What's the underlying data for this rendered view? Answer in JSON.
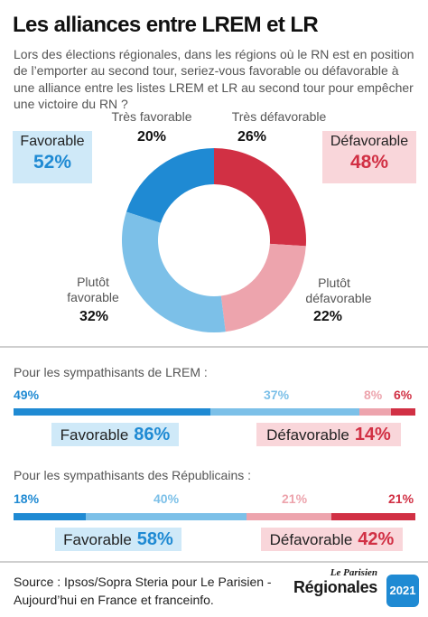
{
  "title": "Les alliances entre LREM et LR",
  "question": "Lors des élections régionales, dans les régions où le RN est en position de l’emporter au second tour, seriez-vous favorable ou défavorable à une alliance entre les listes LREM et LR au second tour pour empêcher une victoire du RN ?",
  "chart_data": [
    {
      "type": "pie",
      "categories": [
        "Très favorable",
        "Très défavorable",
        "Plutôt défavorable",
        "Plutôt favorable"
      ],
      "values": [
        20,
        26,
        22,
        32
      ],
      "value_labels": [
        "20%",
        "26%",
        "22%",
        "32%"
      ],
      "colors": [
        "#1f8ad3",
        "#d13044",
        "#eda4ad",
        "#7cc0e8"
      ],
      "segment_labels": {
        "tres_favorable": "Très favorable",
        "tres_defavorable": "Très défavorable",
        "plutot_defavorable_1": "Plutôt",
        "plutot_defavorable_2": "défavorable",
        "plutot_favorable_1": "Plutôt",
        "plutot_favorable_2": "favorable"
      },
      "summary": {
        "favorable_label": "Favorable",
        "favorable_value": "52%",
        "defavorable_label": "Défavorable",
        "defavorable_value": "48%"
      }
    },
    {
      "type": "bar",
      "stacked": true,
      "title": "Pour les sympathisants de LREM :",
      "categories": [
        "Très favorable",
        "Plutôt favorable",
        "Plutôt défavorable",
        "Très défavorable"
      ],
      "values": [
        49,
        37,
        8,
        6
      ],
      "value_labels": [
        "49%",
        "37%",
        "8%",
        "6%"
      ],
      "colors": [
        "#1f8ad3",
        "#7cc0e8",
        "#eda4ad",
        "#d13044"
      ],
      "favorable_label": "Favorable",
      "favorable_value": "86%",
      "defavorable_label": "Défavorable",
      "defavorable_value": "14%"
    },
    {
      "type": "bar",
      "stacked": true,
      "title": "Pour les sympathisants des Républicains :",
      "categories": [
        "Très favorable",
        "Plutôt favorable",
        "Plutôt défavorable",
        "Très défavorable"
      ],
      "values": [
        18,
        40,
        21,
        21
      ],
      "value_labels": [
        "18%",
        "40%",
        "21%",
        "21%"
      ],
      "colors": [
        "#1f8ad3",
        "#7cc0e8",
        "#eda4ad",
        "#d13044"
      ],
      "favorable_label": "Favorable",
      "favorable_value": "58%",
      "defavorable_label": "Défavorable",
      "defavorable_value": "42%"
    }
  ],
  "source": {
    "line1": "Source : Ipsos/Sopra Steria pour Le Parisien -",
    "line2": "Aujourd’hui en France et franceinfo."
  },
  "brand": {
    "top": "Le Parisien",
    "main": "Régionales",
    "year": "2021"
  }
}
